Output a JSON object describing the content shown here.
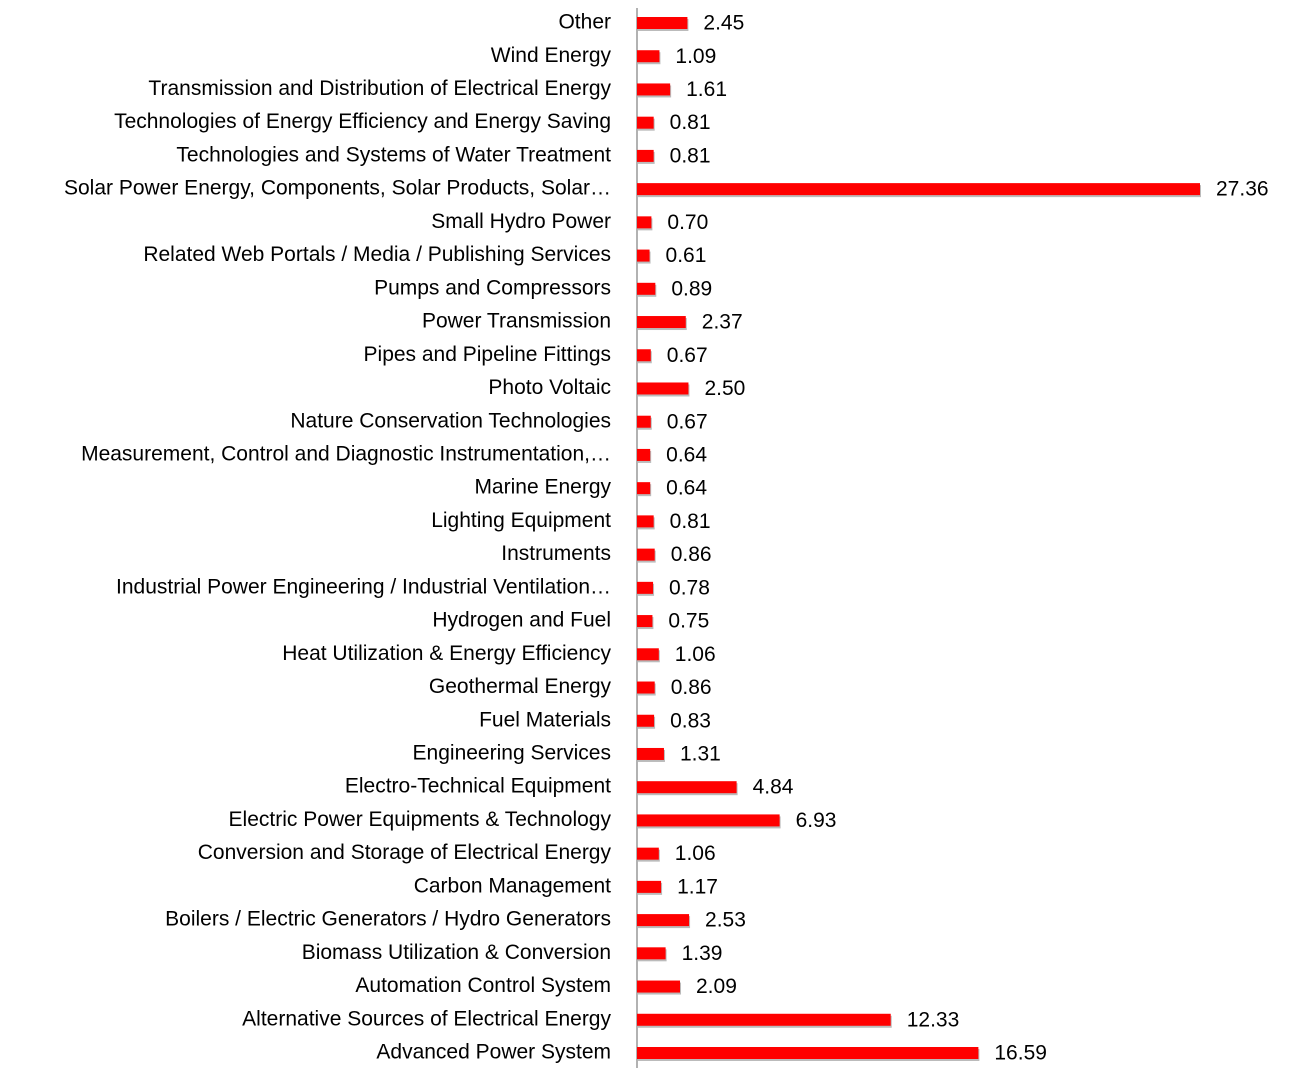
{
  "chart_data": {
    "type": "hbar",
    "color": "#ff0000",
    "categories": [
      "Other",
      "Wind Energy ",
      "Transmission and Distribution of Electrical Energy",
      "Technologies of Energy Efficiency and Energy Saving",
      "Technologies and Systems of Water Treatment ",
      "Solar Power Energy, Components, Solar Products, Solar…",
      "Small Hydro Power",
      "Related Web Portals / Media / Publishing Services",
      "Pumps and Compressors",
      "Power Transmission ",
      "Pipes and Pipeline Fittings ",
      "Photo Voltaic",
      "Nature Conservation Technologies",
      "Measurement, Control and Diagnostic Instrumentation,…",
      "Marine Energy",
      "Lighting Equipment",
      "Instruments",
      "Industrial Power Engineering / Industrial Ventilation…",
      "Hydrogen and Fuel",
      "Heat Utilization & Energy Efficiency",
      "Geothermal Energy",
      "Fuel Materials",
      "Engineering Services",
      "Electro-Technical Equipment",
      "Electric Power Equipments & Technology",
      "Conversion and Storage of Electrical Energy",
      "Carbon Management",
      "Boilers / Electric Generators / Hydro Generators",
      "Biomass Utilization & Conversion",
      "Automation Control System",
      "Alternative Sources of Electrical Energy",
      "Advanced Power System"
    ],
    "values": [
      2.45,
      1.09,
      1.61,
      0.81,
      0.81,
      27.36,
      0.7,
      0.61,
      0.89,
      2.37,
      0.67,
      2.5,
      0.67,
      0.64,
      0.64,
      0.81,
      0.86,
      0.78,
      0.75,
      1.06,
      0.86,
      0.83,
      1.31,
      4.84,
      6.93,
      1.06,
      1.17,
      2.53,
      1.39,
      2.09,
      12.33,
      16.59
    ],
    "value_labels": [
      "2.45",
      "1.09",
      "1.61",
      "0.81",
      "0.81",
      "27.36",
      "0.70",
      "0.61",
      "0.89",
      "2.37",
      "0.67",
      "2.50",
      "0.67",
      "0.64",
      "0.64",
      "0.81",
      "0.86",
      "0.78",
      "0.75",
      "1.06",
      "0.86",
      "0.83",
      "1.31",
      "4.84",
      "6.93",
      "1.06",
      "1.17",
      "2.53",
      "1.39",
      "2.09",
      "12.33",
      "16.59"
    ]
  }
}
